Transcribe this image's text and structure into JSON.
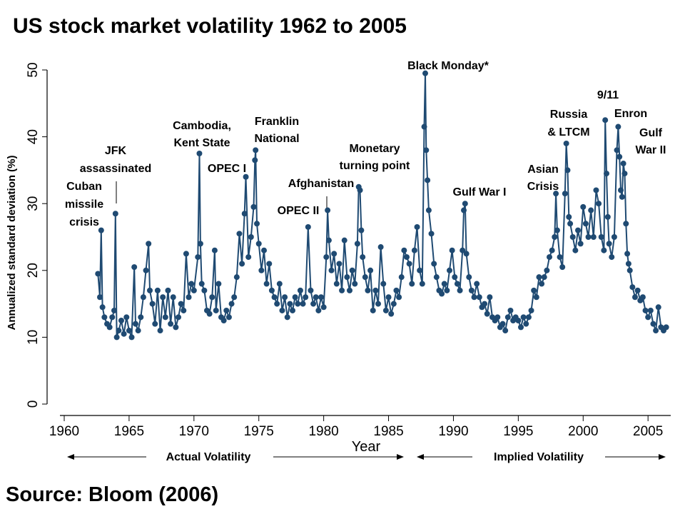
{
  "chart_data": {
    "type": "line",
    "title": "US stock market volatility 1962 to 2005",
    "source": "Source: Bloom (2006)",
    "x_label": "Year",
    "y_label": "Annualized standard deviation (%)",
    "color": "#1f4a72",
    "markers": true,
    "xlim": [
      1959.67,
      2006.75
    ],
    "ylim": [
      0,
      50
    ],
    "xticks": [
      1960,
      1965,
      1970,
      1975,
      1980,
      1985,
      1990,
      1995,
      2000,
      2005
    ],
    "yticks": [
      0,
      10,
      20,
      30,
      40,
      50
    ],
    "regions": [
      "Actual Volatility",
      "Implied Volatility"
    ],
    "annotations": [
      [
        "Cuban",
        "missile",
        "crisis"
      ],
      [
        "JFK",
        "assassinated"
      ],
      [
        "Cambodia,",
        "Kent State"
      ],
      [
        "OPEC I"
      ],
      [
        "Franklin",
        "National"
      ],
      [
        "Afghanistan"
      ],
      [
        "OPEC II"
      ],
      [
        "Monetary",
        "turning point"
      ],
      [
        "Black Monday*"
      ],
      [
        "Gulf War I"
      ],
      [
        "Asian",
        "Crisis"
      ],
      [
        "Russia",
        "& LTCM"
      ],
      [
        "9/11"
      ],
      [
        "Enron"
      ],
      [
        "Gulf",
        "War II"
      ]
    ],
    "x": [
      1962.6,
      1962.75,
      1962.85,
      1962.95,
      1963.1,
      1963.3,
      1963.5,
      1963.7,
      1963.85,
      1963.95,
      1964.05,
      1964.2,
      1964.4,
      1964.6,
      1964.8,
      1965.0,
      1965.2,
      1965.4,
      1965.5,
      1965.7,
      1965.9,
      1966.1,
      1966.3,
      1966.5,
      1966.6,
      1966.8,
      1967.0,
      1967.2,
      1967.4,
      1967.6,
      1967.8,
      1968.0,
      1968.2,
      1968.4,
      1968.6,
      1968.8,
      1969.0,
      1969.2,
      1969.4,
      1969.6,
      1969.8,
      1970.0,
      1970.3,
      1970.42,
      1970.5,
      1970.6,
      1970.8,
      1971.0,
      1971.2,
      1971.4,
      1971.6,
      1971.7,
      1971.9,
      1972.1,
      1972.3,
      1972.5,
      1972.7,
      1972.9,
      1973.1,
      1973.3,
      1973.5,
      1973.7,
      1973.9,
      1974.0,
      1974.2,
      1974.4,
      1974.6,
      1974.7,
      1974.75,
      1974.85,
      1975.0,
      1975.2,
      1975.4,
      1975.6,
      1975.8,
      1976.0,
      1976.2,
      1976.4,
      1976.6,
      1976.8,
      1977.0,
      1977.2,
      1977.4,
      1977.6,
      1977.8,
      1978.0,
      1978.2,
      1978.4,
      1978.6,
      1978.8,
      1979.0,
      1979.2,
      1979.4,
      1979.6,
      1979.8,
      1980.0,
      1980.2,
      1980.3,
      1980.4,
      1980.6,
      1980.8,
      1981.0,
      1981.2,
      1981.4,
      1981.6,
      1981.8,
      1982.0,
      1982.2,
      1982.4,
      1982.6,
      1982.7,
      1982.8,
      1982.9,
      1983.0,
      1983.2,
      1983.4,
      1983.6,
      1983.8,
      1984.0,
      1984.2,
      1984.4,
      1984.6,
      1984.8,
      1985.0,
      1985.2,
      1985.4,
      1985.6,
      1985.8,
      1986.0,
      1986.2,
      1986.4,
      1986.6,
      1986.8,
      1987.0,
      1987.2,
      1987.4,
      1987.6,
      1987.75,
      1987.83,
      1987.9,
      1988.0,
      1988.1,
      1988.3,
      1988.5,
      1988.7,
      1988.9,
      1989.1,
      1989.3,
      1989.5,
      1989.7,
      1989.9,
      1990.1,
      1990.3,
      1990.5,
      1990.7,
      1990.8,
      1990.9,
      1991.0,
      1991.2,
      1991.4,
      1991.6,
      1991.8,
      1992.0,
      1992.2,
      1992.4,
      1992.6,
      1992.8,
      1993.0,
      1993.2,
      1993.4,
      1993.6,
      1993.8,
      1994.0,
      1994.2,
      1994.4,
      1994.6,
      1994.8,
      1995.0,
      1995.2,
      1995.4,
      1995.6,
      1995.8,
      1996.0,
      1996.2,
      1996.4,
      1996.6,
      1996.8,
      1997.0,
      1997.2,
      1997.4,
      1997.6,
      1997.8,
      1997.9,
      1998.0,
      1998.2,
      1998.4,
      1998.6,
      1998.7,
      1998.8,
      1998.9,
      1999.0,
      1999.2,
      1999.4,
      1999.6,
      1999.8,
      2000.0,
      2000.2,
      2000.4,
      2000.6,
      2000.8,
      2001.0,
      2001.2,
      2001.4,
      2001.6,
      2001.7,
      2001.8,
      2001.9,
      2002.0,
      2002.2,
      2002.4,
      2002.6,
      2002.7,
      2002.8,
      2002.9,
      2003.0,
      2003.1,
      2003.2,
      2003.3,
      2003.4,
      2003.5,
      2003.6,
      2003.8,
      2004.0,
      2004.2,
      2004.4,
      2004.6,
      2004.8,
      2005.0,
      2005.2,
      2005.4,
      2005.6,
      2005.8,
      2006.0,
      2006.2,
      2006.4
    ],
    "values": [
      19.5,
      16,
      26,
      14.5,
      13,
      12,
      11.5,
      13,
      14,
      28.5,
      10,
      11,
      12.5,
      10.5,
      13,
      11,
      10,
      20.5,
      12,
      11,
      13,
      16,
      20,
      24,
      17,
      15,
      12,
      17,
      11,
      16,
      13,
      17,
      12,
      16,
      11.5,
      13,
      15,
      14,
      22.5,
      16,
      18,
      17,
      22,
      37.5,
      24,
      18,
      17,
      14,
      13.5,
      16,
      23,
      14,
      18,
      13,
      12.5,
      14,
      13,
      15,
      16,
      19,
      25.5,
      21,
      28.5,
      34,
      22,
      25,
      29.5,
      36.5,
      38,
      27,
      24,
      20,
      23,
      18,
      21,
      17,
      16,
      15,
      18,
      14,
      16,
      13,
      15,
      14,
      16,
      15,
      17,
      15,
      16,
      26.5,
      17,
      15,
      16,
      14,
      16,
      14.5,
      22,
      29,
      24.5,
      20,
      22.5,
      18,
      21,
      17,
      24.5,
      19,
      17,
      20,
      18,
      24,
      32.5,
      32,
      26,
      22,
      19,
      17,
      20,
      14,
      17,
      15,
      23.5,
      18,
      14,
      16,
      13.5,
      15,
      17,
      16,
      19,
      23,
      22,
      21,
      18,
      23,
      26.5,
      20,
      18,
      41.5,
      49.5,
      38,
      33.5,
      29,
      25.5,
      21,
      19,
      17,
      16.5,
      18,
      17,
      20,
      23,
      19,
      18,
      17,
      23,
      29,
      30,
      22.5,
      19,
      17,
      16,
      18,
      16,
      14.5,
      15,
      13.5,
      16,
      13,
      12.5,
      13,
      11.5,
      12,
      11,
      13,
      14,
      12.5,
      13,
      12.5,
      11.5,
      13,
      12,
      13,
      14,
      17,
      16,
      19,
      18,
      19,
      20,
      22,
      23,
      25,
      31.5,
      26,
      22,
      20.5,
      31.5,
      39,
      35,
      28,
      27,
      25,
      23,
      26,
      24,
      29.5,
      27,
      25,
      29,
      25,
      32,
      30,
      25,
      23,
      42.5,
      34.5,
      28,
      24,
      22,
      25,
      38,
      41.5,
      37,
      32,
      31,
      36,
      34.5,
      27,
      22.5,
      21,
      20,
      17.5,
      16,
      17,
      15.5,
      16,
      14,
      13,
      14,
      12,
      11,
      14.5,
      11.5,
      11,
      11.5
    ]
  }
}
